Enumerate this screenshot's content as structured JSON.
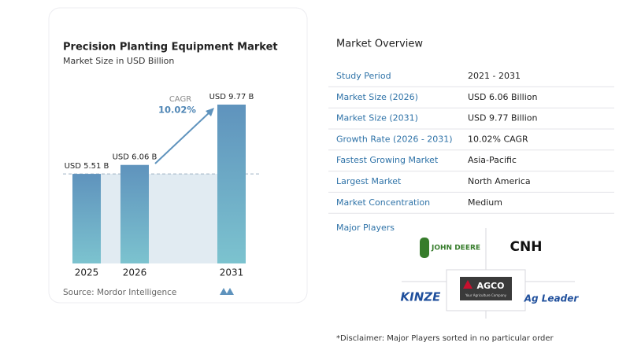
{
  "chart_data": {
    "type": "bar",
    "title": "Precision Planting Equipment Market",
    "subtitle": "Market Size in USD Billion",
    "categories": [
      "2025",
      "2026",
      "2031"
    ],
    "values": [
      5.51,
      6.06,
      9.77
    ],
    "value_labels": [
      "USD 5.51 B",
      "USD 6.06 B",
      "USD 9.77 B"
    ],
    "color": "#5f93bd",
    "annotation": {
      "label": "CAGR",
      "value": "10.02%"
    },
    "source": "Source: Mordor Intelligence"
  },
  "overview": {
    "title": "Market Overview",
    "rows": [
      [
        "Study Period",
        "2021 - 2031"
      ],
      [
        "Market Size (2026)",
        "USD 6.06 Billion"
      ],
      [
        "Market Size (2031)",
        "USD 9.77 Billion"
      ],
      [
        "Growth Rate (2026 - 2031)",
        "10.02% CAGR"
      ],
      [
        "Fastest Growing Market",
        "Asia-Pacific"
      ],
      [
        "Largest Market",
        "North America"
      ],
      [
        "Market Concentration",
        "Medium"
      ]
    ]
  },
  "players": {
    "title": "Major Players",
    "logos": [
      "JOHN DEERE",
      "CNH",
      "KINZE",
      "AGCO",
      "Ag Leader"
    ],
    "agco_tagline": "Your Agriculture Company"
  },
  "disclaimer": "*Disclaimer: Major Players sorted in no particular order"
}
